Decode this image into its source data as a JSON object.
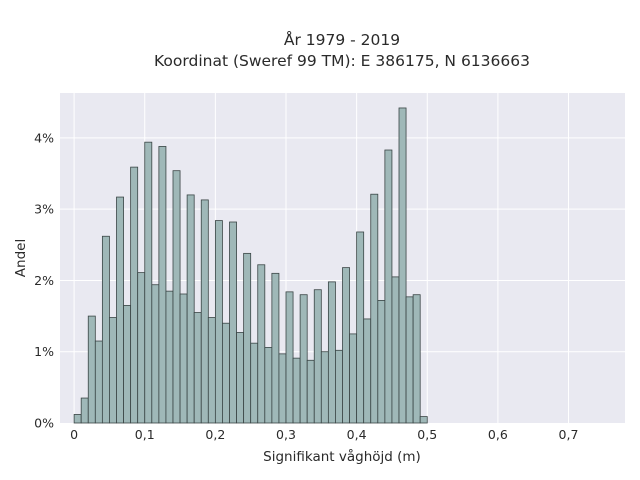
{
  "chart_data": {
    "type": "bar",
    "title_line1": "År 1979 - 2019",
    "title_line2": "Koordinat (Sweref 99 TM): E 386175, N 6136663",
    "xlabel": "Signifikant våghöjd (m)",
    "ylabel": "Andel",
    "bin_width": 0.01,
    "first_bin_start": 0.0,
    "xlim": [
      -0.02,
      0.78
    ],
    "ylim": [
      0,
      0.0463
    ],
    "x_ticks": [
      0,
      0.1,
      0.2,
      0.3,
      0.4,
      0.5,
      0.6,
      0.7
    ],
    "x_tick_labels": [
      "0",
      "0,1",
      "0,2",
      "0,3",
      "0,4",
      "0,5",
      "0,6",
      "0,7"
    ],
    "y_ticks": [
      0,
      0.01,
      0.02,
      0.03,
      0.04
    ],
    "y_tick_labels": [
      "0%",
      "1%",
      "2%",
      "3%",
      "4%"
    ],
    "grid": true,
    "bar_color": "#9fb8b8",
    "bar_edge_color": "#3a4545",
    "plot_background": "#e9e9f1",
    "grid_color": "#ffffff",
    "values": [
      0.0012,
      0.0035,
      0.015,
      0.0115,
      0.0262,
      0.0148,
      0.0317,
      0.0165,
      0.0359,
      0.0211,
      0.0394,
      0.0194,
      0.0388,
      0.0185,
      0.0354,
      0.0181,
      0.032,
      0.0155,
      0.0313,
      0.0148,
      0.0284,
      0.014,
      0.0282,
      0.0127,
      0.0238,
      0.0112,
      0.0222,
      0.0106,
      0.021,
      0.0097,
      0.0184,
      0.0091,
      0.018,
      0.0088,
      0.0187,
      0.01,
      0.0198,
      0.0102,
      0.0218,
      0.0125,
      0.0268,
      0.0146,
      0.0321,
      0.0172,
      0.0383,
      0.0205,
      0.0442,
      0.0177,
      0.018,
      0.0009
    ]
  }
}
